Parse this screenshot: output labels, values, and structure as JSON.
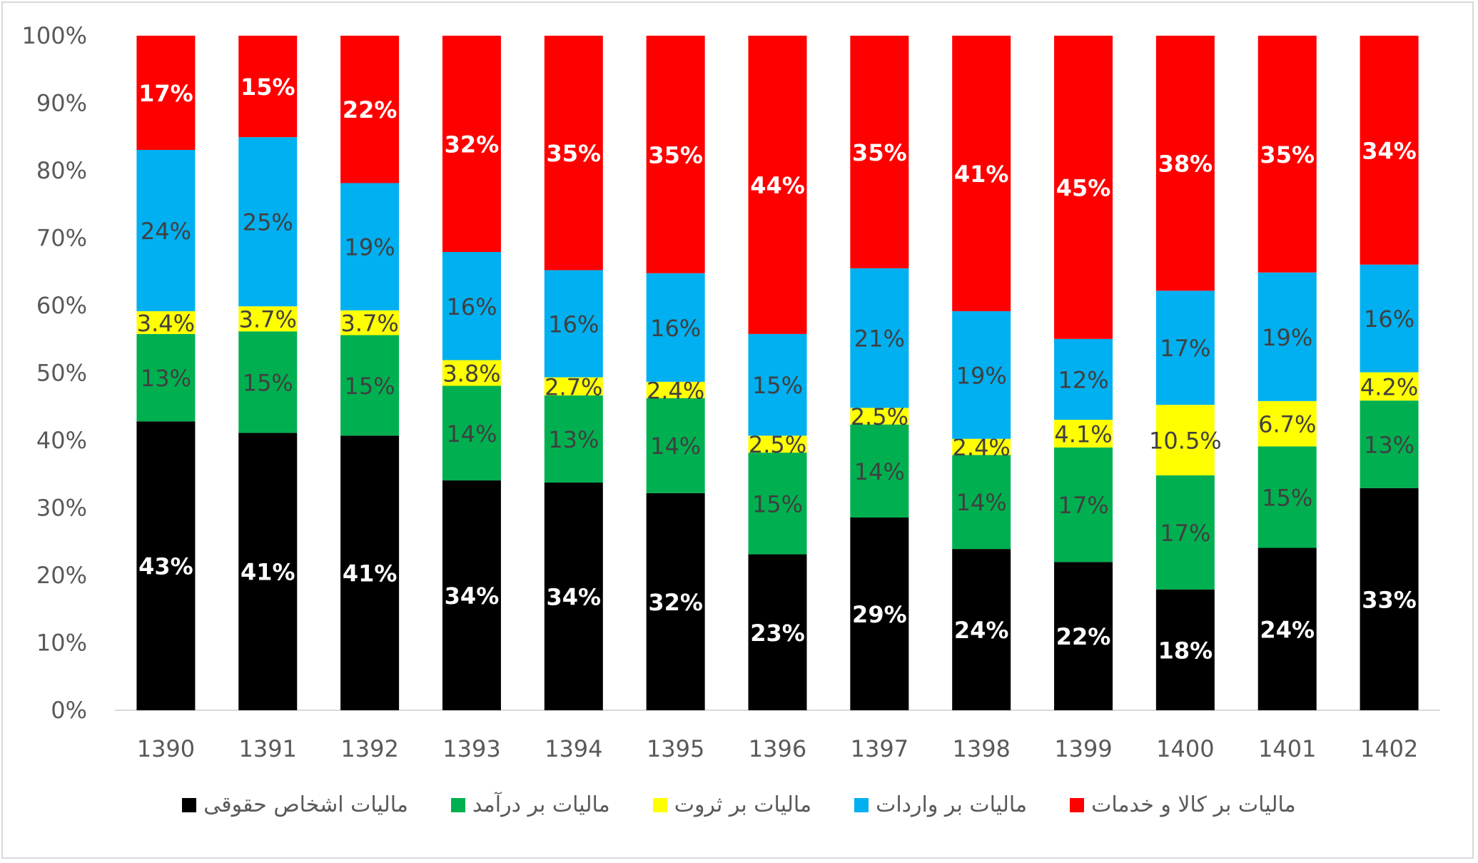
{
  "chart_data": {
    "type": "bar",
    "stacked": "percent",
    "title": "",
    "xlabel": "",
    "ylabel": "",
    "ylim": [
      0,
      100
    ],
    "yticks": [
      "0%",
      "10%",
      "20%",
      "30%",
      "40%",
      "50%",
      "60%",
      "70%",
      "80%",
      "90%",
      "100%"
    ],
    "grid": false,
    "legend_position": "bottom",
    "categories": [
      "1390",
      "1391",
      "1392",
      "1393",
      "1394",
      "1395",
      "1396",
      "1397",
      "1398",
      "1399",
      "1400",
      "1401",
      "1402"
    ],
    "series": [
      {
        "name": "مالیات اشخاص حقوقی",
        "color": "#000000",
        "labels": [
          "43%",
          "41%",
          "41%",
          "34%",
          "34%",
          "32%",
          "23%",
          "29%",
          "24%",
          "22%",
          "18%",
          "24%",
          "33%"
        ],
        "values": [
          43,
          41,
          41,
          34,
          34,
          32,
          23,
          29,
          24,
          22,
          18,
          24,
          33
        ]
      },
      {
        "name": "مالیات بر درآمد",
        "color": "#00b050",
        "labels": [
          "13%",
          "15%",
          "15%",
          "14%",
          "13%",
          "14%",
          "15%",
          "14%",
          "14%",
          "17%",
          "17%",
          "15%",
          "13%"
        ],
        "values": [
          13,
          15,
          15,
          14,
          13,
          14,
          15,
          14,
          14,
          17,
          17,
          15,
          13
        ]
      },
      {
        "name": "مالیات بر ثروت",
        "color": "#ffff00",
        "labels": [
          "3.4%",
          "3.7%",
          "3.7%",
          "3.8%",
          "2.7%",
          "2.4%",
          "2.5%",
          "2.5%",
          "2.4%",
          "4.1%",
          "10.5%",
          "6.7%",
          "4.2%"
        ],
        "values": [
          3.4,
          3.7,
          3.7,
          3.8,
          2.7,
          2.4,
          2.5,
          2.5,
          2.4,
          4.1,
          10.5,
          6.7,
          4.2
        ]
      },
      {
        "name": "مالیات بر واردات",
        "color": "#00b0f0",
        "labels": [
          "24%",
          "25%",
          "19%",
          "16%",
          "16%",
          "16%",
          "15%",
          "21%",
          "19%",
          "12%",
          "17%",
          "19%",
          "16%"
        ],
        "values": [
          24,
          25,
          19,
          16,
          16,
          16,
          15,
          21,
          19,
          12,
          17,
          19,
          16
        ]
      },
      {
        "name": "مالیات بر کالا و خدمات",
        "color": "#ff0000",
        "labels": [
          "17%",
          "15%",
          "22%",
          "32%",
          "35%",
          "35%",
          "44%",
          "35%",
          "41%",
          "45%",
          "38%",
          "35%",
          "34%"
        ],
        "values": [
          17,
          15,
          22,
          32,
          35,
          35,
          44,
          35,
          41,
          45,
          38,
          35,
          34
        ]
      }
    ]
  }
}
